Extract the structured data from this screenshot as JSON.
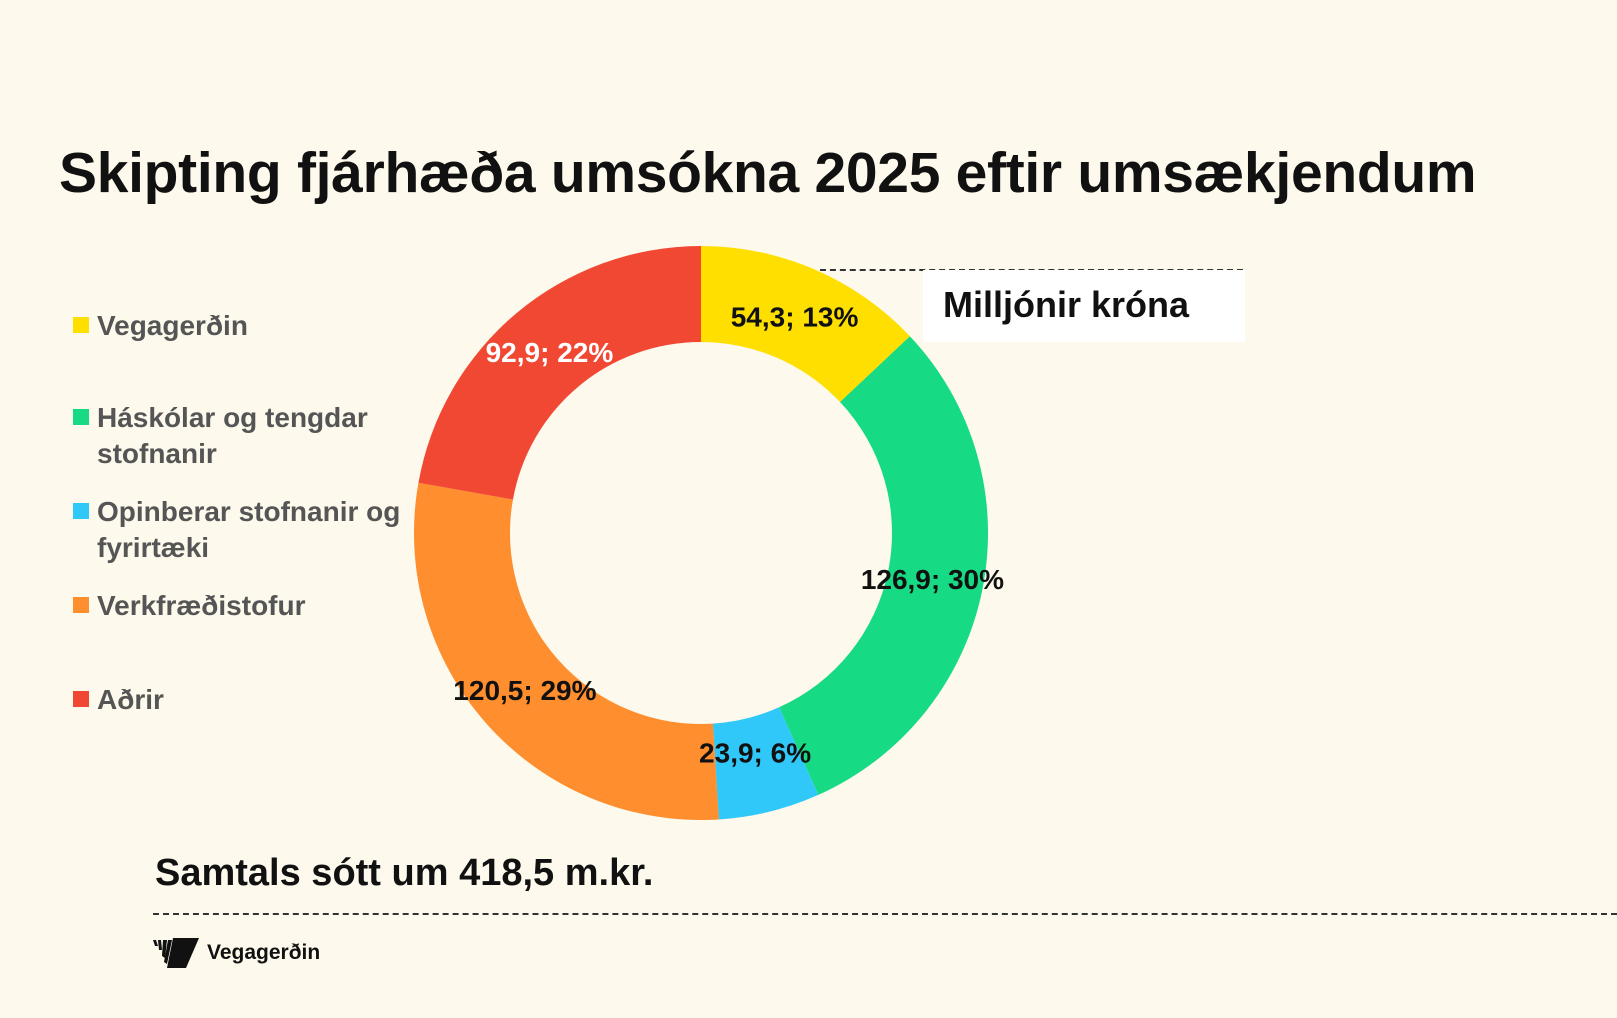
{
  "chart_data": {
    "type": "pie",
    "donut": true,
    "title": "Skipting fjárhæða umsókna 2025 eftir umsækjendum",
    "unit_label": "Milljónir króna",
    "slices": [
      {
        "name": "Vegagerðin",
        "value": 54.3,
        "label": "54,3; 13%",
        "color": "#fedf00",
        "label_color": "#111111"
      },
      {
        "name": "Háskólar og tengdar stofnanir",
        "value": 126.9,
        "label": "126,9; 30%",
        "color": "#16db84",
        "label_color": "#111111"
      },
      {
        "name": "Opinberar stofnanir og fyrirtæki",
        "value": 23.9,
        "label": "23,9; 6%",
        "color": "#30c8f8",
        "label_color": "#111111"
      },
      {
        "name": "Verkfræðistofur",
        "value": 120.5,
        "label": "120,5; 29%",
        "color": "#fe8e2e",
        "label_color": "#111111"
      },
      {
        "name": "Aðrir",
        "value": 92.9,
        "label": "92,9; 22%",
        "color": "#f14834",
        "label_color": "#ffffff"
      }
    ],
    "legend_position": "left",
    "legend": [
      "Vegagerðin",
      "Háskólar og tengdar stofnanir",
      "Opinberar stofnanir og fyrirtæki",
      "Verkfræðistofur",
      "Aðrir"
    ]
  },
  "footer": {
    "total": "Samtals sótt um 418,5 m.kr.",
    "logo_text": "Vegagerðin"
  }
}
